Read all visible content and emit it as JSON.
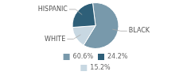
{
  "chart_data": {
    "type": "pie",
    "categories": [
      "BLACK",
      "WHITE",
      "HISPANIC"
    ],
    "values": [
      60.6,
      15.2,
      24.2
    ],
    "value_labels": [
      "60.6%",
      "15.2%",
      "24.2%"
    ],
    "colors": [
      "#7899ab",
      "#c8d8e2",
      "#2e5f78"
    ],
    "legend": "bottom"
  }
}
